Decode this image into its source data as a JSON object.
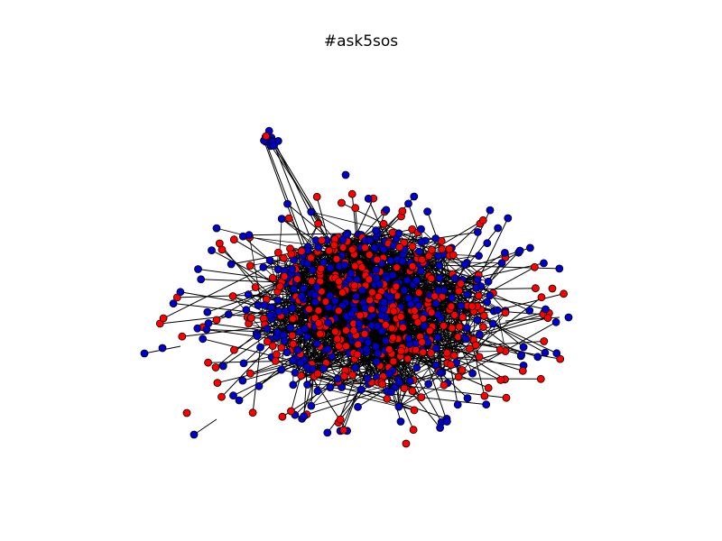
{
  "figure": {
    "title": "#ask5sos"
  },
  "graph": {
    "type": "network",
    "node_colors": {
      "red": "#ff0000",
      "blue": "#0000cc"
    },
    "edge_color": "#000000",
    "node_outline": "#000000",
    "axes_visible": false
  }
}
